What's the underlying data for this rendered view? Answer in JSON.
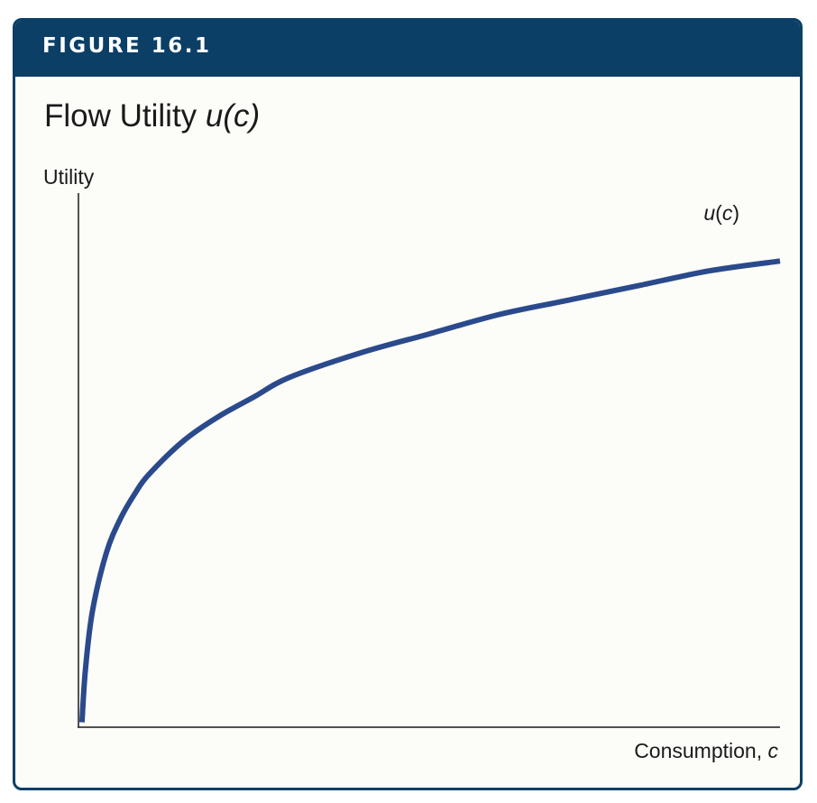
{
  "figure": {
    "label": "FIGURE 16.1",
    "title_text": "Flow Utility ",
    "title_math": "u(c)",
    "header_color": "#0b3f66",
    "curve_color": "#2a4a8c"
  },
  "chart_data": {
    "type": "line",
    "title": "Flow Utility u(c)",
    "xlabel": "Consumption, c",
    "ylabel": "Utility",
    "grid": false,
    "ticks": "none",
    "series": [
      {
        "name": "u(c)",
        "x": [
          0.005,
          0.01,
          0.02,
          0.04,
          0.06,
          0.08,
          0.1,
          0.15,
          0.2,
          0.25,
          0.3,
          0.4,
          0.5,
          0.6,
          0.7,
          0.8,
          0.9,
          1.0
        ],
        "y": [
          0.01,
          0.12,
          0.24,
          0.36,
          0.43,
          0.48,
          0.52,
          0.59,
          0.64,
          0.68,
          0.72,
          0.77,
          0.81,
          0.85,
          0.88,
          0.91,
          0.94,
          0.96
        ]
      }
    ],
    "xlim": [
      0,
      1
    ],
    "ylim": [
      0,
      1.1
    ],
    "series_label_parts": {
      "math": "u",
      "open": "(",
      "var": "c",
      "close": ")"
    },
    "xlabel_parts": {
      "text": "Consumption, ",
      "var": "c"
    }
  }
}
